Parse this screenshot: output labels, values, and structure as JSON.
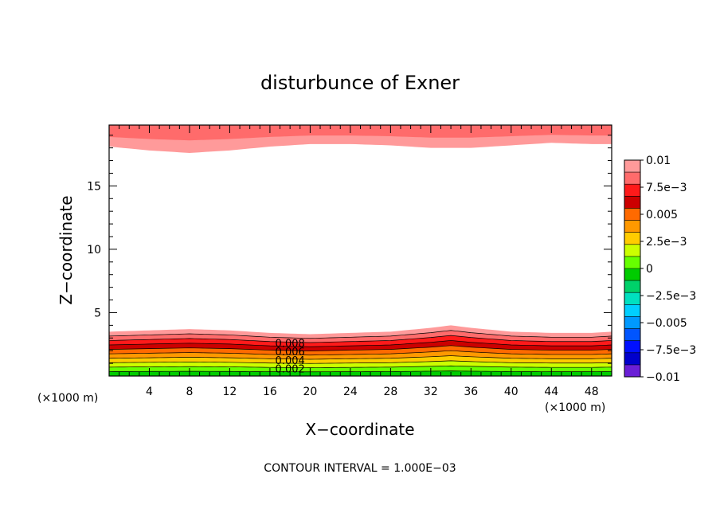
{
  "chart_data": {
    "type": "contour",
    "title": "disturbunce of Exner",
    "xlabel": "X−coordinate",
    "ylabel": "Z−coordinate",
    "x_unit": "(×1000 m)",
    "y_unit": "(×1000 m)",
    "xlim": [
      0,
      50
    ],
    "ylim": [
      0,
      19.8
    ],
    "xticks": [
      4,
      8,
      12,
      16,
      20,
      24,
      28,
      32,
      36,
      40,
      44,
      48
    ],
    "xtick_labels": [
      "4",
      "8",
      "12",
      "16",
      "20",
      "24",
      "28",
      "32",
      "36",
      "40",
      "44",
      "48"
    ],
    "yticks": [
      5,
      10,
      15
    ],
    "ytick_labels": [
      "5",
      "10",
      "15"
    ],
    "contour_interval": 0.001,
    "footer": "CONTOUR INTERVAL = 1.000E−03",
    "colorbar": {
      "range": [
        -0.01,
        0.01
      ],
      "tick_labels": [
        "0.01",
        "7.5e−3",
        "0.005",
        "2.5e−3",
        "0",
        "−2.5e−3",
        "−0.005",
        "−7.5e−3",
        "−0.01"
      ],
      "colors": [
        "#ff9a9a",
        "#ff6b6b",
        "#ff1a1a",
        "#cc0000",
        "#ff6a00",
        "#ff9900",
        "#ffcc00",
        "#ccff00",
        "#66ff00",
        "#00cc00",
        "#00d26a",
        "#00e0c0",
        "#00cfff",
        "#0099ff",
        "#0055ff",
        "#0010ff",
        "#0000cc",
        "#6a1fd6"
      ]
    },
    "contour_labels": [
      "0.008",
      "0.006",
      "0.004",
      "0.002"
    ],
    "top_band": {
      "x": [
        0,
        4,
        8,
        12,
        16,
        20,
        24,
        28,
        32,
        36,
        40,
        44,
        48,
        50
      ],
      "z_lower": [
        18.1,
        17.8,
        17.6,
        17.8,
        18.1,
        18.3,
        18.3,
        18.2,
        18.0,
        18.0,
        18.2,
        18.4,
        18.3,
        18.3
      ]
    },
    "bottom_band": {
      "x": [
        0,
        4,
        8,
        12,
        16,
        20,
        24,
        28,
        32,
        34,
        36,
        40,
        44,
        48,
        50
      ],
      "z_upper": [
        3.5,
        3.6,
        3.7,
        3.6,
        3.4,
        3.3,
        3.4,
        3.5,
        3.8,
        4.0,
        3.8,
        3.5,
        3.4,
        3.4,
        3.5
      ]
    }
  }
}
